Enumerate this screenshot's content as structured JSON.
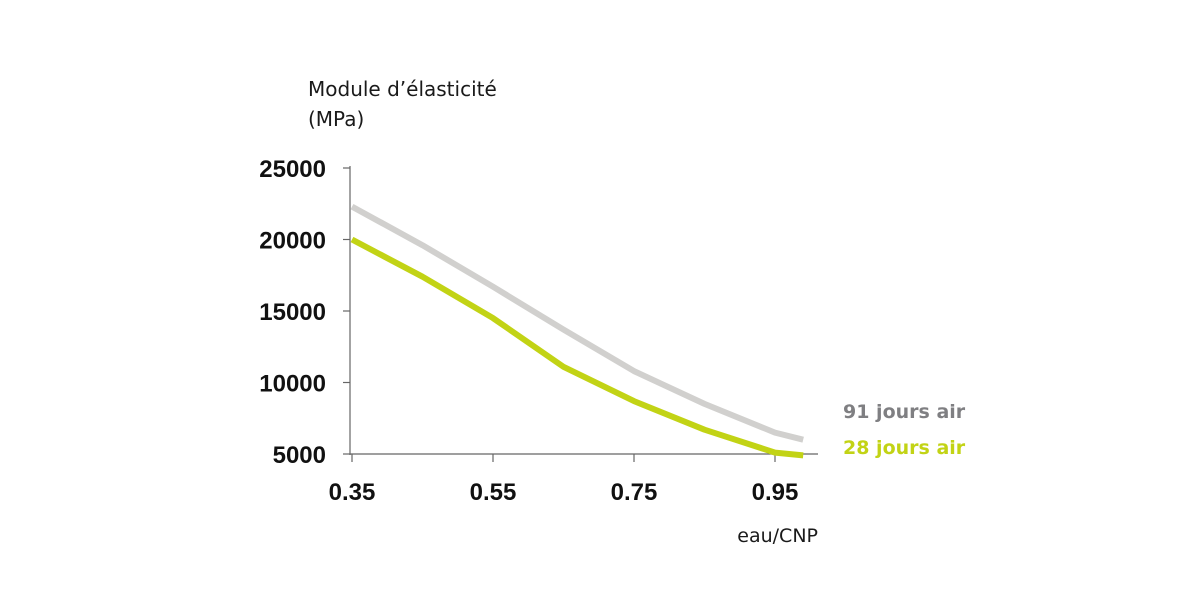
{
  "chart_data": {
    "type": "line",
    "ylabel": [
      "Module d’élasticité",
      "(MPa)"
    ],
    "xlabel": "eau/CNP",
    "x_ticks": [
      "0.35",
      "0.55",
      "0.75",
      "0.95"
    ],
    "y_ticks": [
      "25000",
      "20000",
      "15000",
      "10000",
      "5000"
    ],
    "xlim": [
      0.35,
      1.01
    ],
    "ylim": [
      5000,
      25000
    ],
    "grid": false,
    "legend_placement": "right, at line ends",
    "series": [
      {
        "name": "91 jours air",
        "color": "#d1d0ce",
        "label_color": "#7f7f82",
        "x": [
          0.35,
          0.45,
          0.55,
          0.65,
          0.75,
          0.85,
          0.95,
          0.99
        ],
        "y": [
          22300,
          19600,
          16700,
          13700,
          10800,
          8500,
          6500,
          6000
        ]
      },
      {
        "name": "28 jours air",
        "color": "#c2d315",
        "label_color": "#c2d315",
        "x": [
          0.35,
          0.45,
          0.55,
          0.65,
          0.75,
          0.85,
          0.95,
          0.99
        ],
        "y": [
          20000,
          17400,
          14500,
          11100,
          8700,
          6700,
          5100,
          4900
        ]
      }
    ]
  }
}
